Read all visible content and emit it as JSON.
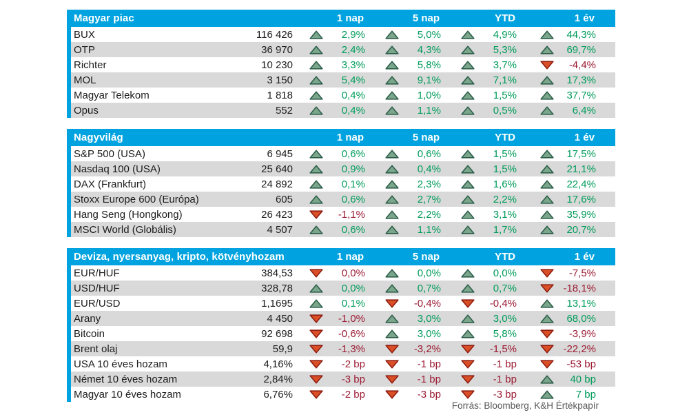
{
  "colors": {
    "header_bg": "#00A3DF",
    "row_alt": "#D9D9D9",
    "text": "#1C1C1C",
    "positive": "#009C5B",
    "negative": "#9C1B33",
    "up_fill": "#7BA68C",
    "up_stroke": "#2D5F4A",
    "down_fill": "#DB4F27",
    "down_stroke": "#8F1D10",
    "footer_text": "#575757"
  },
  "columns": [
    "1 nap",
    "5 nap",
    "YTD",
    "1 év"
  ],
  "footer": {
    "source": "Forrás: Bloomberg, K&H Értékpapír"
  },
  "chart_data": [
    {
      "type": "table",
      "title": "Magyar piac",
      "rows": [
        {
          "name": "BUX",
          "value": "116 426",
          "changes": [
            {
              "dir": "up",
              "text": "2,9%"
            },
            {
              "dir": "up",
              "text": "5,0%"
            },
            {
              "dir": "up",
              "text": "4,9%"
            },
            {
              "dir": "up",
              "text": "44,3%"
            }
          ]
        },
        {
          "name": "OTP",
          "value": "36 970",
          "changes": [
            {
              "dir": "up",
              "text": "2,4%"
            },
            {
              "dir": "up",
              "text": "4,3%"
            },
            {
              "dir": "up",
              "text": "5,3%"
            },
            {
              "dir": "up",
              "text": "69,7%"
            }
          ]
        },
        {
          "name": "Richter",
          "value": "10 230",
          "changes": [
            {
              "dir": "up",
              "text": "3,3%"
            },
            {
              "dir": "up",
              "text": "5,8%"
            },
            {
              "dir": "up",
              "text": "3,7%"
            },
            {
              "dir": "down",
              "text": "-4,4%"
            }
          ]
        },
        {
          "name": "MOL",
          "value": "3 150",
          "changes": [
            {
              "dir": "up",
              "text": "5,4%"
            },
            {
              "dir": "up",
              "text": "9,1%"
            },
            {
              "dir": "up",
              "text": "7,1%"
            },
            {
              "dir": "up",
              "text": "17,3%"
            }
          ]
        },
        {
          "name": "Magyar Telekom",
          "value": "1 818",
          "changes": [
            {
              "dir": "up",
              "text": "0,4%"
            },
            {
              "dir": "up",
              "text": "1,0%"
            },
            {
              "dir": "up",
              "text": "1,5%"
            },
            {
              "dir": "up",
              "text": "37,7%"
            }
          ]
        },
        {
          "name": "Opus",
          "value": "552",
          "changes": [
            {
              "dir": "up",
              "text": "0,4%"
            },
            {
              "dir": "up",
              "text": "1,1%"
            },
            {
              "dir": "up",
              "text": "0,5%"
            },
            {
              "dir": "up",
              "text": "6,4%"
            }
          ]
        }
      ]
    },
    {
      "type": "table",
      "title": "Nagyvilág",
      "rows": [
        {
          "name": "S&P 500 (USA)",
          "value": "6 945",
          "changes": [
            {
              "dir": "up",
              "text": "0,6%"
            },
            {
              "dir": "up",
              "text": "0,6%"
            },
            {
              "dir": "up",
              "text": "1,5%"
            },
            {
              "dir": "up",
              "text": "17,5%"
            }
          ]
        },
        {
          "name": "Nasdaq 100 (USA)",
          "value": "25 640",
          "changes": [
            {
              "dir": "up",
              "text": "0,9%"
            },
            {
              "dir": "up",
              "text": "0,4%"
            },
            {
              "dir": "up",
              "text": "1,5%"
            },
            {
              "dir": "up",
              "text": "21,1%"
            }
          ]
        },
        {
          "name": "DAX (Frankfurt)",
          "value": "24 892",
          "changes": [
            {
              "dir": "up",
              "text": "0,1%"
            },
            {
              "dir": "up",
              "text": "2,3%"
            },
            {
              "dir": "up",
              "text": "1,6%"
            },
            {
              "dir": "up",
              "text": "22,4%"
            }
          ]
        },
        {
          "name": "Stoxx Europe 600 (Európa)",
          "value": "605",
          "changes": [
            {
              "dir": "up",
              "text": "0,6%"
            },
            {
              "dir": "up",
              "text": "2,7%"
            },
            {
              "dir": "up",
              "text": "2,2%"
            },
            {
              "dir": "up",
              "text": "17,6%"
            }
          ]
        },
        {
          "name": "Hang Seng (Hongkong)",
          "value": "26 423",
          "changes": [
            {
              "dir": "down",
              "text": "-1,1%"
            },
            {
              "dir": "up",
              "text": "2,2%"
            },
            {
              "dir": "up",
              "text": "3,1%"
            },
            {
              "dir": "up",
              "text": "35,9%"
            }
          ]
        },
        {
          "name": "MSCI World (Globális)",
          "value": "4 507",
          "changes": [
            {
              "dir": "up",
              "text": "0,6%"
            },
            {
              "dir": "up",
              "text": "1,1%"
            },
            {
              "dir": "up",
              "text": "1,7%"
            },
            {
              "dir": "up",
              "text": "20,7%"
            }
          ]
        }
      ]
    },
    {
      "type": "table",
      "title": "Deviza, nyersanyag, kripto, kötvényhozam",
      "rows": [
        {
          "name": "EUR/HUF",
          "value": "384,53",
          "changes": [
            {
              "dir": "down",
              "text": "0,0%"
            },
            {
              "dir": "up",
              "text": "0,0%"
            },
            {
              "dir": "up",
              "text": "0,0%"
            },
            {
              "dir": "down",
              "text": "-7,5%"
            }
          ]
        },
        {
          "name": "USD/HUF",
          "value": "328,78",
          "changes": [
            {
              "dir": "up",
              "text": "0,0%"
            },
            {
              "dir": "up",
              "text": "0,7%"
            },
            {
              "dir": "up",
              "text": "0,7%"
            },
            {
              "dir": "down",
              "text": "-18,1%"
            }
          ]
        },
        {
          "name": "EUR/USD",
          "value": "1,1695",
          "changes": [
            {
              "dir": "up",
              "text": "0,1%"
            },
            {
              "dir": "down",
              "text": "-0,4%"
            },
            {
              "dir": "down",
              "text": "-0,4%"
            },
            {
              "dir": "up",
              "text": "13,1%"
            }
          ]
        },
        {
          "name": "Arany",
          "value": "4 450",
          "changes": [
            {
              "dir": "down",
              "text": "-1,0%"
            },
            {
              "dir": "up",
              "text": "3,0%"
            },
            {
              "dir": "up",
              "text": "3,0%"
            },
            {
              "dir": "up",
              "text": "68,0%"
            }
          ]
        },
        {
          "name": "Bitcoin",
          "value": "92 698",
          "changes": [
            {
              "dir": "down",
              "text": "-0,6%"
            },
            {
              "dir": "up",
              "text": "3,0%"
            },
            {
              "dir": "up",
              "text": "5,8%"
            },
            {
              "dir": "down",
              "text": "-3,9%"
            }
          ]
        },
        {
          "name": "Brent olaj",
          "value": "59,9",
          "changes": [
            {
              "dir": "down",
              "text": "-1,3%"
            },
            {
              "dir": "down",
              "text": "-3,2%"
            },
            {
              "dir": "down",
              "text": "-1,5%"
            },
            {
              "dir": "down",
              "text": "-22,2%"
            }
          ]
        },
        {
          "name": "USA 10 éves hozam",
          "value": "4,16%",
          "changes": [
            {
              "dir": "down",
              "text": "-2 bp"
            },
            {
              "dir": "down",
              "text": "-1 bp"
            },
            {
              "dir": "down",
              "text": "-1 bp"
            },
            {
              "dir": "down",
              "text": "-53 bp"
            }
          ]
        },
        {
          "name": "Német 10 éves hozam",
          "value": "2,84%",
          "changes": [
            {
              "dir": "down",
              "text": "-3 bp"
            },
            {
              "dir": "down",
              "text": "-1 bp"
            },
            {
              "dir": "down",
              "text": "-1 bp"
            },
            {
              "dir": "up",
              "text": "40 bp"
            }
          ]
        },
        {
          "name": "Magyar 10 éves hozam",
          "value": "6,76%",
          "changes": [
            {
              "dir": "down",
              "text": "-2 bp"
            },
            {
              "dir": "down",
              "text": "-3 bp"
            },
            {
              "dir": "down",
              "text": "-3 bp"
            },
            {
              "dir": "up",
              "text": "7 bp"
            }
          ]
        }
      ]
    }
  ]
}
